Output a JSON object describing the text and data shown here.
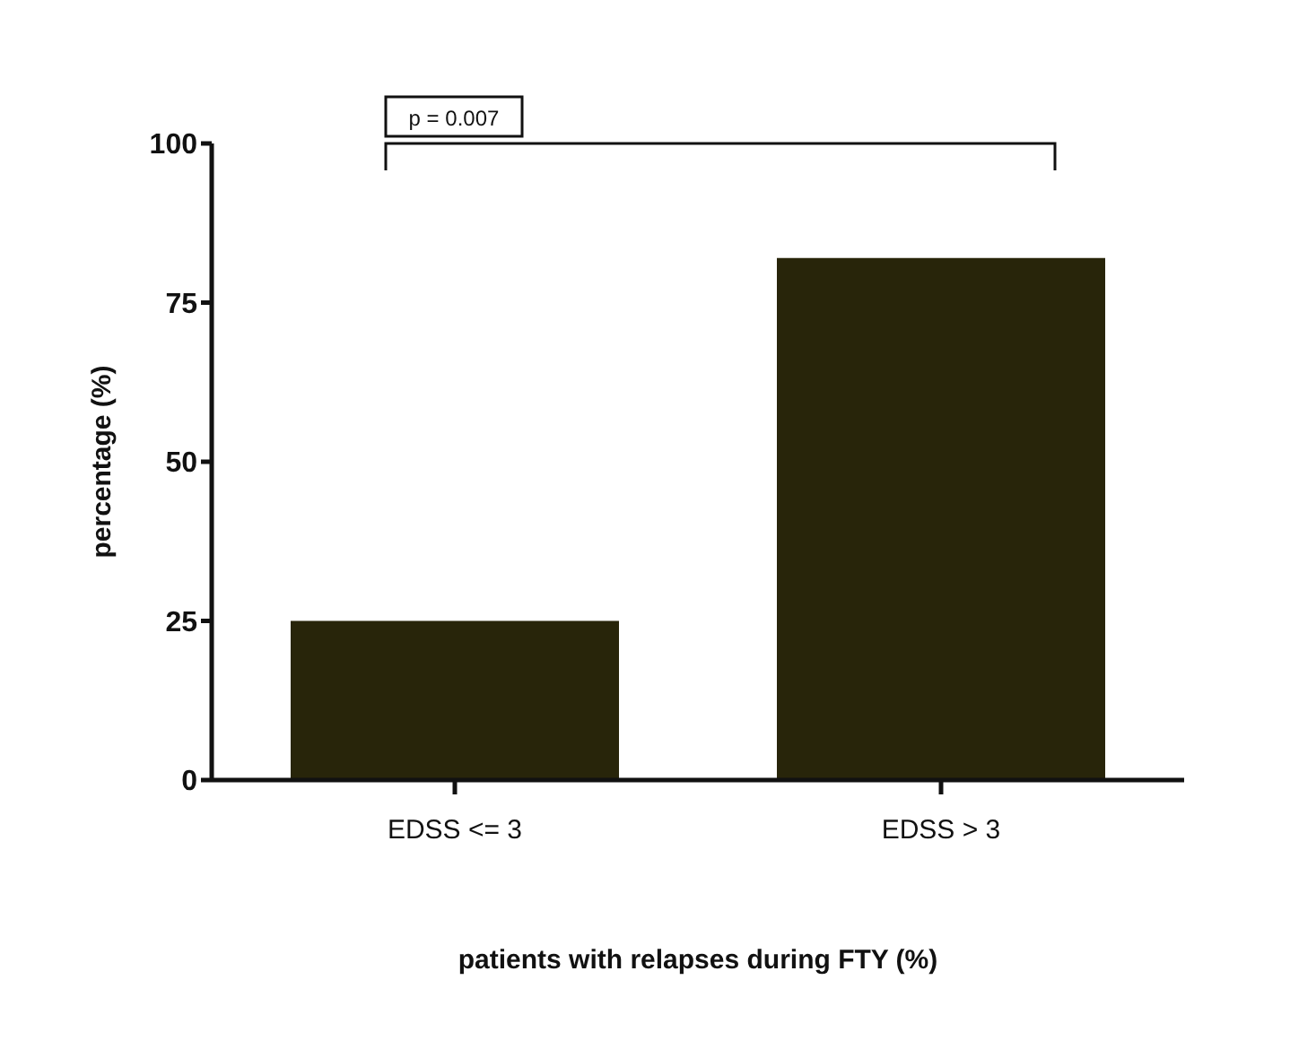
{
  "chart_data": {
    "type": "bar",
    "xlabel": "patients with relapses during FTY (%)",
    "ylabel": "percentage (%)",
    "categories": [
      "EDSS <= 3",
      "EDSS > 3"
    ],
    "values": [
      25,
      82
    ],
    "color": "#28250a",
    "ylim": [
      0,
      100
    ],
    "yticks": [
      0,
      25,
      50,
      75,
      100
    ],
    "annotations": [
      "p = 0.007"
    ]
  }
}
